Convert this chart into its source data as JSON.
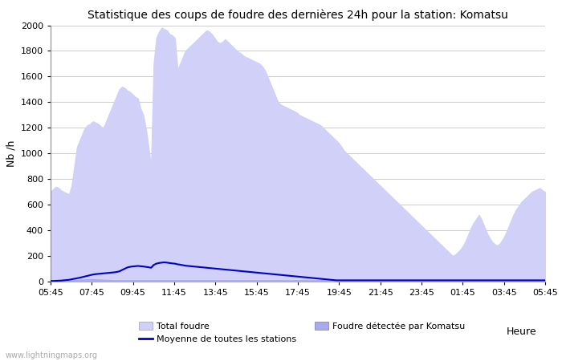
{
  "title": "Statistique des coups de foudre des dernières 24h pour la station: Komatsu",
  "xlabel": "Heure",
  "ylabel": "Nb /h",
  "x_labels": [
    "05:45",
    "07:45",
    "09:45",
    "11:45",
    "13:45",
    "15:45",
    "17:45",
    "19:45",
    "21:45",
    "23:45",
    "01:45",
    "03:45",
    "05:45"
  ],
  "ylim": [
    0,
    2000
  ],
  "yticks": [
    0,
    200,
    400,
    600,
    800,
    1000,
    1200,
    1400,
    1600,
    1800,
    2000
  ],
  "bg_color": "#ffffff",
  "total_foudre_color": "#d0d0f8",
  "total_foudre_edge": "#aaaadd",
  "komatsu_color": "#aaaaee",
  "komatsu_edge": "#8888cc",
  "moyenne_color": "#0000cc",
  "watermark": "www.lightningmaps.org",
  "total_foudre": [
    700,
    720,
    740,
    730,
    710,
    700,
    690,
    680,
    750,
    900,
    1050,
    1100,
    1150,
    1200,
    1220,
    1230,
    1250,
    1240,
    1230,
    1210,
    1200,
    1250,
    1300,
    1350,
    1400,
    1450,
    1500,
    1520,
    1510,
    1490,
    1480,
    1460,
    1440,
    1430,
    1350,
    1300,
    1200,
    1050,
    900,
    1700,
    1900,
    1950,
    1980,
    1970,
    1960,
    1930,
    1920,
    1900,
    1650,
    1700,
    1750,
    1800,
    1820,
    1840,
    1860,
    1880,
    1900,
    1920,
    1940,
    1960,
    1950,
    1930,
    1900,
    1870,
    1860,
    1870,
    1890,
    1870,
    1850,
    1830,
    1810,
    1790,
    1780,
    1760,
    1750,
    1740,
    1730,
    1720,
    1710,
    1700,
    1680,
    1650,
    1600,
    1550,
    1500,
    1450,
    1400,
    1380,
    1370,
    1360,
    1350,
    1340,
    1330,
    1320,
    1300,
    1290,
    1280,
    1270,
    1260,
    1250,
    1240,
    1230,
    1220,
    1200,
    1180,
    1160,
    1140,
    1120,
    1100,
    1080,
    1050,
    1020,
    1000,
    980,
    960,
    940,
    920,
    900,
    880,
    860,
    840,
    820,
    800,
    780,
    760,
    740,
    720,
    700,
    680,
    660,
    640,
    620,
    600,
    580,
    560,
    540,
    520,
    500,
    480,
    460,
    440,
    420,
    400,
    380,
    360,
    340,
    320,
    300,
    280,
    260,
    240,
    220,
    200,
    210,
    230,
    250,
    280,
    320,
    370,
    420,
    460,
    490,
    520,
    480,
    430,
    380,
    340,
    310,
    290,
    280,
    300,
    330,
    370,
    420,
    470,
    520,
    560,
    590,
    620,
    640,
    660,
    680,
    700,
    710,
    720,
    730,
    710,
    700
  ],
  "komatsu": [
    5,
    5,
    5,
    5,
    5,
    5,
    5,
    5,
    8,
    10,
    12,
    14,
    15,
    16,
    17,
    18,
    18,
    17,
    16,
    15,
    14,
    13,
    12,
    11,
    10,
    10,
    10,
    10,
    10,
    10,
    10,
    10,
    10,
    10,
    10,
    10,
    10,
    10,
    10,
    10,
    10,
    10,
    10,
    10,
    10,
    10,
    10,
    10,
    10,
    10,
    10,
    10,
    10,
    10,
    10,
    10,
    10,
    10,
    10,
    10,
    10,
    10,
    10,
    10,
    10,
    10,
    10,
    10,
    10,
    10,
    10,
    10,
    10,
    10,
    10,
    10,
    10,
    10,
    10,
    10,
    10,
    10,
    10,
    10,
    10,
    10,
    10,
    10,
    10,
    10,
    10,
    10,
    10,
    10,
    10,
    10,
    10,
    10,
    10,
    10,
    10,
    10,
    10,
    10,
    10,
    10,
    10,
    10,
    10,
    10,
    10,
    10,
    10,
    10,
    10,
    10,
    10,
    10,
    10,
    10,
    10,
    10,
    10,
    10,
    10,
    10,
    10,
    10,
    10,
    10,
    10,
    10,
    10,
    10,
    10,
    10,
    10,
    10,
    10,
    10,
    10,
    10,
    10,
    10,
    10,
    10,
    10,
    10,
    10,
    10,
    10,
    10,
    10,
    10,
    10,
    10,
    10,
    10,
    10,
    10,
    10,
    10,
    10,
    10,
    10,
    10,
    10,
    10,
    10,
    10,
    10,
    10,
    10,
    10,
    10,
    10,
    10,
    10,
    10,
    10,
    10,
    10,
    10,
    10,
    10,
    10,
    10,
    10
  ],
  "moyenne": [
    5,
    5,
    6,
    7,
    8,
    10,
    12,
    14,
    18,
    22,
    26,
    30,
    35,
    40,
    45,
    50,
    55,
    58,
    60,
    62,
    64,
    66,
    68,
    70,
    72,
    75,
    80,
    90,
    100,
    110,
    115,
    118,
    120,
    122,
    120,
    118,
    115,
    112,
    108,
    130,
    140,
    145,
    148,
    150,
    148,
    145,
    142,
    140,
    135,
    132,
    128,
    124,
    122,
    120,
    118,
    116,
    114,
    112,
    110,
    108,
    106,
    104,
    102,
    100,
    98,
    96,
    94,
    92,
    90,
    88,
    86,
    84,
    82,
    80,
    78,
    76,
    74,
    72,
    70,
    68,
    66,
    64,
    62,
    60,
    58,
    56,
    54,
    52,
    50,
    48,
    46,
    44,
    42,
    40,
    38,
    36,
    34,
    32,
    30,
    28,
    26,
    24,
    22,
    20,
    18,
    16,
    14,
    12,
    10,
    10,
    10,
    10,
    10,
    10,
    10,
    10,
    10,
    10,
    10,
    10,
    10,
    10,
    10,
    10,
    10,
    10,
    10,
    10,
    10,
    10,
    10,
    10,
    10,
    10,
    10,
    10,
    10,
    10,
    10,
    10,
    10,
    10,
    10,
    10,
    10,
    10,
    10,
    10,
    10,
    10,
    10,
    10,
    10,
    10,
    10,
    10,
    10,
    10,
    10,
    10,
    10,
    10,
    10,
    10,
    10,
    10,
    10,
    10,
    10,
    10,
    10,
    10,
    10,
    10,
    10,
    10,
    10,
    10,
    10,
    10,
    10,
    10,
    10,
    10,
    10,
    10,
    10,
    10
  ]
}
